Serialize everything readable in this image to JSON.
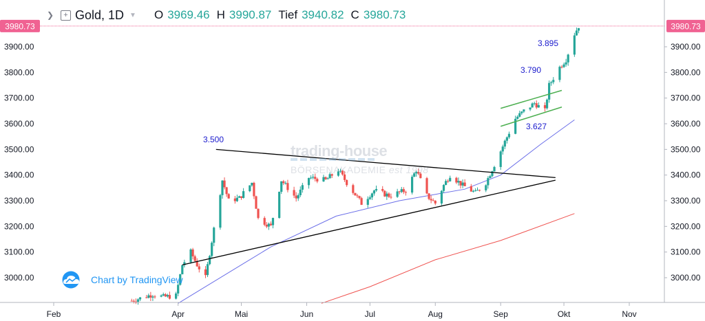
{
  "header": {
    "symbol": "Gold, 1D",
    "open_label": "O",
    "open": "3969.46",
    "high_label": "H",
    "high": "3990.87",
    "low_label": "Tief",
    "low": "3940.82",
    "close_label": "C",
    "close": "3980.73"
  },
  "price_tag": "3980.73",
  "watermark": {
    "brand": "trading-house",
    "tagline": "BÖRSENAKADEMIE",
    "est": "est 1998"
  },
  "tv_label": "Chart by TradingView",
  "annotations": {
    "a3500": "3.500",
    "a3627": "3.627",
    "a3790": "3.790",
    "a3895": "3.895"
  },
  "colors": {
    "up": "#26a69a",
    "down": "#ef5350",
    "ma_blue": "#6a6ee8",
    "ma_red": "#ef5350",
    "channel": "#4caf50",
    "trend": "#000000",
    "price_line": "#f06292"
  },
  "chart_data": {
    "type": "candlestick",
    "timeframe": "1D",
    "x_ticks": [
      "Feb",
      "Apr",
      "Mai",
      "Jun",
      "Jul",
      "Aug",
      "Sep",
      "Okt",
      "Nov"
    ],
    "y_ticks": [
      3000,
      3100,
      3200,
      3300,
      3400,
      3500,
      3600,
      3700,
      3800,
      3900
    ],
    "ylim": [
      2900,
      4000
    ],
    "last_price": 3980.73,
    "ohlc_last": {
      "open": 3969.46,
      "high": 3990.87,
      "low": 3940.82,
      "close": 3980.73
    },
    "price_path": [
      [
        "2025-03-10",
        2910
      ],
      [
        "2025-03-20",
        2935
      ],
      [
        "2025-03-25",
        2925
      ],
      [
        "2025-03-31",
        2930
      ],
      [
        "2025-04-03",
        3050
      ],
      [
        "2025-04-07",
        3100
      ],
      [
        "2025-04-10",
        3050
      ],
      [
        "2025-04-14",
        3000
      ],
      [
        "2025-04-22",
        3380
      ],
      [
        "2025-04-25",
        3300
      ],
      [
        "2025-04-30",
        3310
      ],
      [
        "2025-05-06",
        3370
      ],
      [
        "2025-05-09",
        3230
      ],
      [
        "2025-05-15",
        3200
      ],
      [
        "2025-05-20",
        3380
      ],
      [
        "2025-05-27",
        3310
      ],
      [
        "2025-06-02",
        3390
      ],
      [
        "2025-06-10",
        3380
      ],
      [
        "2025-06-16",
        3420
      ],
      [
        "2025-06-20",
        3370
      ],
      [
        "2025-06-27",
        3290
      ],
      [
        "2025-07-03",
        3340
      ],
      [
        "2025-07-10",
        3320
      ],
      [
        "2025-07-18",
        3340
      ],
      [
        "2025-07-23",
        3420
      ],
      [
        "2025-07-28",
        3320
      ],
      [
        "2025-08-01",
        3290
      ],
      [
        "2025-08-05",
        3360
      ],
      [
        "2025-08-08",
        3400
      ],
      [
        "2025-08-14",
        3360
      ],
      [
        "2025-08-20",
        3330
      ],
      [
        "2025-08-25",
        3370
      ],
      [
        "2025-08-29",
        3440
      ],
      [
        "2025-09-03",
        3530
      ],
      [
        "2025-09-08",
        3620
      ],
      [
        "2025-09-12",
        3650
      ],
      [
        "2025-09-17",
        3680
      ],
      [
        "2025-09-22",
        3650
      ],
      [
        "2025-09-24",
        3750
      ],
      [
        "2025-09-29",
        3820
      ],
      [
        "2025-10-02",
        3850
      ],
      [
        "2025-10-06",
        3950
      ],
      [
        "2025-10-08",
        3980.73
      ]
    ],
    "moving_averages": [
      {
        "color": "blue",
        "points": [
          [
            "2025-04-01",
            2900
          ],
          [
            "2025-05-15",
            3120
          ],
          [
            "2025-06-15",
            3240
          ],
          [
            "2025-07-15",
            3300
          ],
          [
            "2025-08-15",
            3345
          ],
          [
            "2025-09-01",
            3400
          ],
          [
            "2025-09-20",
            3520
          ],
          [
            "2025-10-06",
            3615
          ]
        ]
      },
      {
        "color": "red",
        "points": [
          [
            "2025-06-08",
            2900
          ],
          [
            "2025-07-01",
            2965
          ],
          [
            "2025-08-01",
            3070
          ],
          [
            "2025-09-01",
            3145
          ],
          [
            "2025-10-06",
            3250
          ]
        ]
      }
    ],
    "drawings": {
      "triangle_upper": [
        [
          "2025-04-19",
          3500
        ],
        [
          "2025-09-27",
          3390
        ]
      ],
      "triangle_lower": [
        [
          "2025-04-03",
          3050
        ],
        [
          "2025-09-27",
          3380
        ]
      ],
      "channel_upper": [
        [
          "2025-09-01",
          3660
        ],
        [
          "2025-09-30",
          3730
        ]
      ],
      "channel_lower": [
        [
          "2025-09-01",
          3590
        ],
        [
          "2025-09-30",
          3665
        ]
      ]
    }
  }
}
